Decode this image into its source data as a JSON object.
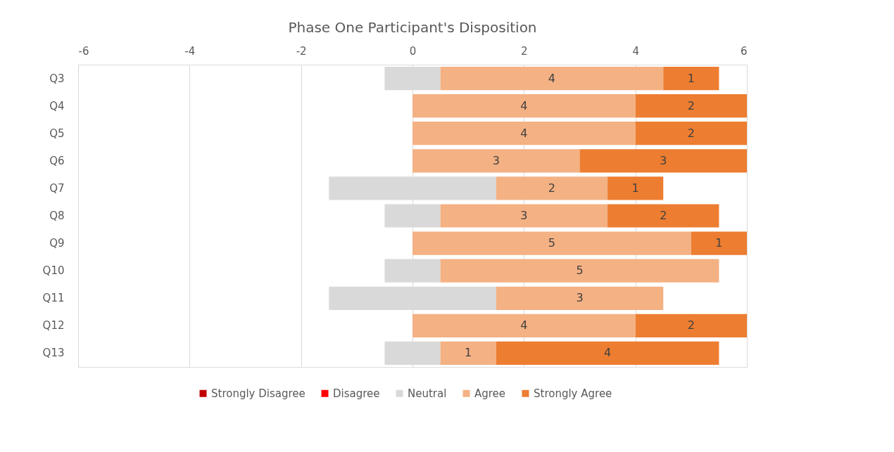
{
  "chart_data": {
    "type": "bar",
    "orientation": "horizontal",
    "title": "Phase One Participant's Disposition",
    "categories": [
      "Q3",
      "Q4",
      "Q5",
      "Q6",
      "Q7",
      "Q8",
      "Q9",
      "Q10",
      "Q11",
      "Q12",
      "Q13"
    ],
    "series": [
      {
        "name": "Strongly Disagree",
        "color": "#c00000",
        "values": [
          0,
          0,
          0,
          0,
          0,
          0,
          0,
          0,
          0,
          0,
          0
        ]
      },
      {
        "name": "Disagree",
        "color": "#ff0000",
        "values": [
          0,
          0,
          0,
          0,
          0,
          0,
          0,
          0,
          0,
          0,
          0
        ]
      },
      {
        "name": "Neutral",
        "color": "#d9d9d9",
        "base": [
          -0.5,
          null,
          null,
          null,
          -1.5,
          -0.5,
          null,
          -0.5,
          -1.5,
          null,
          -0.5
        ],
        "values": [
          1,
          0,
          0,
          0,
          3,
          1,
          0,
          1,
          3,
          0,
          1
        ]
      },
      {
        "name": "Agree",
        "color": "#f4b183",
        "base": [
          0.5,
          0,
          0,
          0,
          1.5,
          0.5,
          0,
          0.5,
          1.5,
          0,
          0.5
        ],
        "values": [
          4,
          4,
          4,
          3,
          2,
          3,
          5,
          5,
          3,
          4,
          1
        ],
        "value_labels": [
          "4",
          "4",
          "4",
          "3",
          "2",
          "3",
          "5",
          "5",
          "3",
          "4",
          "1"
        ]
      },
      {
        "name": "Strongly Agree",
        "color": "#ed7d31",
        "base": [
          4.5,
          4,
          4,
          3,
          3.5,
          3.5,
          5,
          null,
          null,
          4,
          1.5
        ],
        "values": [
          1,
          2,
          2,
          3,
          1,
          2,
          1,
          0,
          0,
          2,
          4
        ],
        "value_labels": [
          "1",
          "2",
          "2",
          "3",
          "1",
          "2",
          "1",
          null,
          null,
          "2",
          "4"
        ]
      }
    ],
    "xlim": [
      -6,
      6
    ],
    "xticks": [
      -6,
      -4,
      -2,
      0,
      2,
      4,
      6
    ],
    "grid": "x",
    "legend": "bottom"
  }
}
